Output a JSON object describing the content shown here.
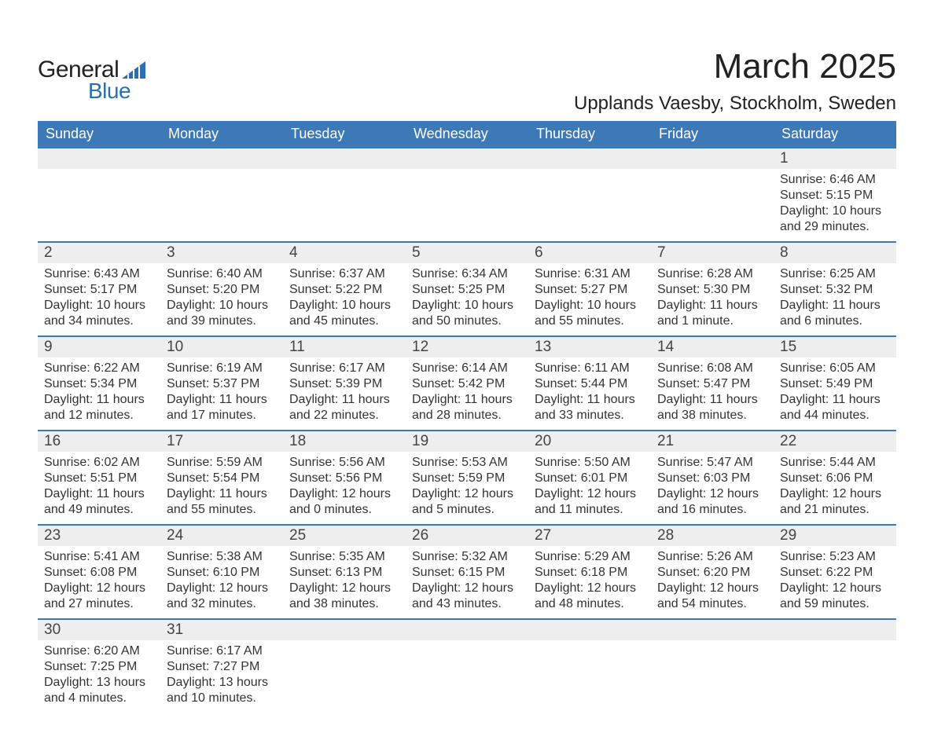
{
  "logo": {
    "text1": "General",
    "text2": "Blue",
    "triangle_color": "#2c6fb0"
  },
  "title": "March 2025",
  "location": "Upplands Vaesby, Stockholm, Sweden",
  "header_bg": "#3d78b7",
  "header_text_color": "#ffffff",
  "daynum_bg": "#eeeeee",
  "row_border_color": "#3d78b7",
  "weekdays": [
    "Sunday",
    "Monday",
    "Tuesday",
    "Wednesday",
    "Thursday",
    "Friday",
    "Saturday"
  ],
  "first_day_index": 6,
  "days": [
    {
      "n": "1",
      "sunrise": "Sunrise: 6:46 AM",
      "sunset": "Sunset: 5:15 PM",
      "daylight": "Daylight: 10 hours and 29 minutes."
    },
    {
      "n": "2",
      "sunrise": "Sunrise: 6:43 AM",
      "sunset": "Sunset: 5:17 PM",
      "daylight": "Daylight: 10 hours and 34 minutes."
    },
    {
      "n": "3",
      "sunrise": "Sunrise: 6:40 AM",
      "sunset": "Sunset: 5:20 PM",
      "daylight": "Daylight: 10 hours and 39 minutes."
    },
    {
      "n": "4",
      "sunrise": "Sunrise: 6:37 AM",
      "sunset": "Sunset: 5:22 PM",
      "daylight": "Daylight: 10 hours and 45 minutes."
    },
    {
      "n": "5",
      "sunrise": "Sunrise: 6:34 AM",
      "sunset": "Sunset: 5:25 PM",
      "daylight": "Daylight: 10 hours and 50 minutes."
    },
    {
      "n": "6",
      "sunrise": "Sunrise: 6:31 AM",
      "sunset": "Sunset: 5:27 PM",
      "daylight": "Daylight: 10 hours and 55 minutes."
    },
    {
      "n": "7",
      "sunrise": "Sunrise: 6:28 AM",
      "sunset": "Sunset: 5:30 PM",
      "daylight": "Daylight: 11 hours and 1 minute."
    },
    {
      "n": "8",
      "sunrise": "Sunrise: 6:25 AM",
      "sunset": "Sunset: 5:32 PM",
      "daylight": "Daylight: 11 hours and 6 minutes."
    },
    {
      "n": "9",
      "sunrise": "Sunrise: 6:22 AM",
      "sunset": "Sunset: 5:34 PM",
      "daylight": "Daylight: 11 hours and 12 minutes."
    },
    {
      "n": "10",
      "sunrise": "Sunrise: 6:19 AM",
      "sunset": "Sunset: 5:37 PM",
      "daylight": "Daylight: 11 hours and 17 minutes."
    },
    {
      "n": "11",
      "sunrise": "Sunrise: 6:17 AM",
      "sunset": "Sunset: 5:39 PM",
      "daylight": "Daylight: 11 hours and 22 minutes."
    },
    {
      "n": "12",
      "sunrise": "Sunrise: 6:14 AM",
      "sunset": "Sunset: 5:42 PM",
      "daylight": "Daylight: 11 hours and 28 minutes."
    },
    {
      "n": "13",
      "sunrise": "Sunrise: 6:11 AM",
      "sunset": "Sunset: 5:44 PM",
      "daylight": "Daylight: 11 hours and 33 minutes."
    },
    {
      "n": "14",
      "sunrise": "Sunrise: 6:08 AM",
      "sunset": "Sunset: 5:47 PM",
      "daylight": "Daylight: 11 hours and 38 minutes."
    },
    {
      "n": "15",
      "sunrise": "Sunrise: 6:05 AM",
      "sunset": "Sunset: 5:49 PM",
      "daylight": "Daylight: 11 hours and 44 minutes."
    },
    {
      "n": "16",
      "sunrise": "Sunrise: 6:02 AM",
      "sunset": "Sunset: 5:51 PM",
      "daylight": "Daylight: 11 hours and 49 minutes."
    },
    {
      "n": "17",
      "sunrise": "Sunrise: 5:59 AM",
      "sunset": "Sunset: 5:54 PM",
      "daylight": "Daylight: 11 hours and 55 minutes."
    },
    {
      "n": "18",
      "sunrise": "Sunrise: 5:56 AM",
      "sunset": "Sunset: 5:56 PM",
      "daylight": "Daylight: 12 hours and 0 minutes."
    },
    {
      "n": "19",
      "sunrise": "Sunrise: 5:53 AM",
      "sunset": "Sunset: 5:59 PM",
      "daylight": "Daylight: 12 hours and 5 minutes."
    },
    {
      "n": "20",
      "sunrise": "Sunrise: 5:50 AM",
      "sunset": "Sunset: 6:01 PM",
      "daylight": "Daylight: 12 hours and 11 minutes."
    },
    {
      "n": "21",
      "sunrise": "Sunrise: 5:47 AM",
      "sunset": "Sunset: 6:03 PM",
      "daylight": "Daylight: 12 hours and 16 minutes."
    },
    {
      "n": "22",
      "sunrise": "Sunrise: 5:44 AM",
      "sunset": "Sunset: 6:06 PM",
      "daylight": "Daylight: 12 hours and 21 minutes."
    },
    {
      "n": "23",
      "sunrise": "Sunrise: 5:41 AM",
      "sunset": "Sunset: 6:08 PM",
      "daylight": "Daylight: 12 hours and 27 minutes."
    },
    {
      "n": "24",
      "sunrise": "Sunrise: 5:38 AM",
      "sunset": "Sunset: 6:10 PM",
      "daylight": "Daylight: 12 hours and 32 minutes."
    },
    {
      "n": "25",
      "sunrise": "Sunrise: 5:35 AM",
      "sunset": "Sunset: 6:13 PM",
      "daylight": "Daylight: 12 hours and 38 minutes."
    },
    {
      "n": "26",
      "sunrise": "Sunrise: 5:32 AM",
      "sunset": "Sunset: 6:15 PM",
      "daylight": "Daylight: 12 hours and 43 minutes."
    },
    {
      "n": "27",
      "sunrise": "Sunrise: 5:29 AM",
      "sunset": "Sunset: 6:18 PM",
      "daylight": "Daylight: 12 hours and 48 minutes."
    },
    {
      "n": "28",
      "sunrise": "Sunrise: 5:26 AM",
      "sunset": "Sunset: 6:20 PM",
      "daylight": "Daylight: 12 hours and 54 minutes."
    },
    {
      "n": "29",
      "sunrise": "Sunrise: 5:23 AM",
      "sunset": "Sunset: 6:22 PM",
      "daylight": "Daylight: 12 hours and 59 minutes."
    },
    {
      "n": "30",
      "sunrise": "Sunrise: 6:20 AM",
      "sunset": "Sunset: 7:25 PM",
      "daylight": "Daylight: 13 hours and 4 minutes."
    },
    {
      "n": "31",
      "sunrise": "Sunrise: 6:17 AM",
      "sunset": "Sunset: 7:27 PM",
      "daylight": "Daylight: 13 hours and 10 minutes."
    }
  ]
}
